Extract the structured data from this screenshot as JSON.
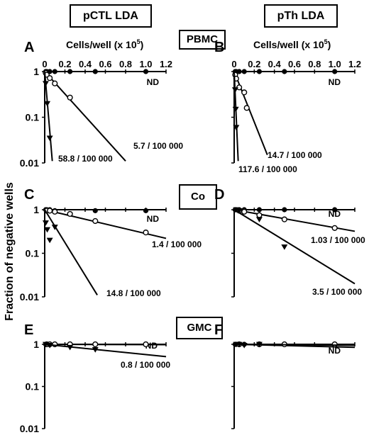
{
  "header": {
    "left_title": "pCTL LDA",
    "right_title": "pTh LDA",
    "y_axis_label": "Fraction of negative wells",
    "x_axis_label_base": "Cells/well (x 10",
    "x_axis_label_exp": "5",
    "x_axis_label_close": ")"
  },
  "row_labels": [
    "PBMC",
    "Co",
    "GMC"
  ],
  "chart_data": [
    {
      "panel": "A",
      "type": "scatter",
      "row_label": "PBMC",
      "show_x_ticks": true,
      "x_ticks": [
        "0",
        "0.2",
        "0.4",
        "0.6",
        "0.8",
        "1.0",
        "1.2"
      ],
      "y_ticks": [
        "1",
        "0.1",
        "0.01"
      ],
      "y_scale": "log",
      "ylim": [
        0.01,
        1
      ],
      "xlim": [
        0,
        1.2
      ],
      "series": [
        {
          "marker": "filled-circle",
          "points": [
            [
              0.01,
              1
            ],
            [
              0.02,
              1
            ],
            [
              0.05,
              1
            ],
            [
              0.1,
              1
            ],
            [
              0.25,
              1
            ],
            [
              0.5,
              1
            ],
            [
              1.0,
              1
            ]
          ],
          "fit": [
            [
              0,
              1
            ],
            [
              1.2,
              1
            ]
          ],
          "label": "ND"
        },
        {
          "marker": "open-circle",
          "points": [
            [
              0.01,
              0.93
            ],
            [
              0.02,
              0.85
            ],
            [
              0.05,
              0.72
            ],
            [
              0.1,
              0.55
            ],
            [
              0.25,
              0.27
            ]
          ],
          "fit": [
            [
              0,
              1
            ],
            [
              0.8,
              0.011
            ]
          ],
          "label": "5.7 / 100 000"
        },
        {
          "marker": "filled-triangle",
          "points": [
            [
              0.01,
              0.55
            ],
            [
              0.025,
              0.2
            ],
            [
              0.05,
              0.035
            ]
          ],
          "fit": [
            [
              0,
              1
            ],
            [
              0.075,
              0.011
            ]
          ],
          "label": "58.8 / 100 000"
        }
      ]
    },
    {
      "panel": "B",
      "type": "scatter",
      "show_x_ticks": true,
      "x_ticks": [
        "0",
        "0.2",
        "0.4",
        "0.6",
        "0.8",
        "1.0",
        "1.2"
      ],
      "y_ticks": [
        "1",
        "0.1",
        "0.01"
      ],
      "y_scale": "log",
      "ylim": [
        0.01,
        1
      ],
      "xlim": [
        0,
        1.2
      ],
      "series": [
        {
          "marker": "filled-circle",
          "points": [
            [
              0.01,
              1
            ],
            [
              0.02,
              1
            ],
            [
              0.05,
              1
            ],
            [
              0.1,
              1
            ],
            [
              0.25,
              1
            ],
            [
              0.5,
              1
            ],
            [
              1.0,
              1
            ]
          ],
          "fit": [
            [
              0,
              1
            ],
            [
              1.2,
              1
            ]
          ],
          "label": "ND"
        },
        {
          "marker": "open-circle",
          "points": [
            [
              0.01,
              0.85
            ],
            [
              0.02,
              0.7
            ],
            [
              0.05,
              0.45
            ],
            [
              0.1,
              0.35
            ],
            [
              0.125,
              0.16
            ]
          ],
          "fit": [
            [
              0,
              1
            ],
            [
              0.33,
              0.015
            ]
          ],
          "label": "14.7 / 100 000"
        },
        {
          "marker": "filled-triangle",
          "points": [
            [
              0.01,
              0.4
            ],
            [
              0.015,
              0.15
            ],
            [
              0.02,
              0.06
            ]
          ],
          "fit": [
            [
              0,
              1
            ],
            [
              0.04,
              0.011
            ]
          ],
          "label": "117.6 / 100 000"
        }
      ]
    },
    {
      "panel": "C",
      "type": "scatter",
      "row_label": "Co",
      "show_x_ticks": false,
      "y_ticks": [
        "1",
        "0.1",
        "0.01"
      ],
      "y_scale": "log",
      "ylim": [
        0.01,
        1
      ],
      "xlim": [
        0,
        1.2
      ],
      "series": [
        {
          "marker": "filled-circle",
          "points": [
            [
              0.01,
              1
            ],
            [
              0.02,
              1
            ],
            [
              0.05,
              1
            ],
            [
              0.1,
              0.95
            ],
            [
              0.5,
              0.95
            ],
            [
              1.0,
              0.95
            ]
          ],
          "fit": [
            [
              0,
              1
            ],
            [
              1.2,
              1
            ]
          ],
          "label": "ND"
        },
        {
          "marker": "open-circle",
          "points": [
            [
              0.02,
              0.95
            ],
            [
              0.05,
              0.95
            ],
            [
              0.1,
              0.9
            ],
            [
              0.25,
              0.8
            ],
            [
              0.5,
              0.55
            ],
            [
              1.0,
              0.3
            ]
          ],
          "fit": [
            [
              0,
              1
            ],
            [
              1.2,
              0.22
            ]
          ],
          "label": "1.4 / 100 000"
        },
        {
          "marker": "filled-triangle",
          "points": [
            [
              0.01,
              0.5
            ],
            [
              0.025,
              0.35
            ],
            [
              0.05,
              0.2
            ],
            [
              0.1,
              0.4
            ]
          ],
          "fit": [
            [
              0,
              1
            ],
            [
              0.52,
              0.011
            ]
          ],
          "label": "14.8 / 100 000"
        }
      ]
    },
    {
      "panel": "D",
      "type": "scatter",
      "show_x_ticks": false,
      "y_ticks": [
        "1",
        "0.1",
        "0.01"
      ],
      "y_scale": "log",
      "ylim": [
        0.01,
        1
      ],
      "xlim": [
        0,
        1.2
      ],
      "series": [
        {
          "marker": "filled-circle",
          "points": [
            [
              0.01,
              1
            ],
            [
              0.02,
              1
            ],
            [
              0.05,
              1
            ],
            [
              0.1,
              1
            ],
            [
              0.25,
              1
            ],
            [
              0.5,
              1
            ],
            [
              1.0,
              1
            ]
          ],
          "fit": [
            [
              0,
              1
            ],
            [
              1.2,
              1
            ]
          ],
          "label": "ND"
        },
        {
          "marker": "open-circle",
          "points": [
            [
              0.05,
              0.95
            ],
            [
              0.1,
              0.9
            ],
            [
              0.25,
              0.75
            ],
            [
              0.5,
              0.6
            ],
            [
              1.0,
              0.38
            ]
          ],
          "fit": [
            [
              0,
              1
            ],
            [
              1.2,
              0.32
            ]
          ],
          "label": "1.03 / 100 000"
        },
        {
          "marker": "filled-triangle",
          "points": [
            [
              0.02,
              1
            ],
            [
              0.05,
              0.95
            ],
            [
              0.25,
              0.6
            ],
            [
              0.5,
              0.14
            ]
          ],
          "fit": [
            [
              0,
              1
            ],
            [
              1.2,
              0.02
            ]
          ],
          "label": "3.5 / 100 000"
        }
      ]
    },
    {
      "panel": "E",
      "type": "scatter",
      "row_label": "GMC",
      "show_x_ticks": false,
      "y_ticks": [
        "1",
        "0.1",
        "0.01"
      ],
      "y_scale": "log",
      "ylim": [
        0.01,
        1
      ],
      "xlim": [
        0,
        1.2
      ],
      "series": [
        {
          "marker": "filled-circle",
          "points": [
            [
              0.01,
              1
            ],
            [
              0.02,
              1
            ],
            [
              0.05,
              1
            ],
            [
              0.1,
              1
            ],
            [
              0.25,
              1
            ],
            [
              0.5,
              1
            ],
            [
              1.0,
              1
            ]
          ],
          "fit": [
            [
              0,
              1
            ],
            [
              1.2,
              1
            ]
          ],
          "label": "ND"
        },
        {
          "marker": "open-circle",
          "points": [
            [
              0.02,
              1
            ],
            [
              0.05,
              1
            ],
            [
              0.1,
              1
            ],
            [
              0.25,
              1
            ],
            [
              0.5,
              1
            ],
            [
              1.0,
              1
            ]
          ],
          "fit": [
            [
              0,
              1
            ],
            [
              1.2,
              0.98
            ]
          ],
          "label": ""
        },
        {
          "marker": "filled-triangle",
          "points": [
            [
              0.01,
              1
            ],
            [
              0.05,
              0.95
            ],
            [
              0.25,
              0.85
            ],
            [
              0.5,
              0.75
            ]
          ],
          "fit": [
            [
              0,
              1
            ],
            [
              1.2,
              0.51
            ]
          ],
          "label": "0.8 / 100 000"
        }
      ]
    },
    {
      "panel": "F",
      "type": "scatter",
      "show_x_ticks": false,
      "y_ticks": [
        "1",
        "0.1",
        "0.01"
      ],
      "y_scale": "log",
      "ylim": [
        0.01,
        1
      ],
      "xlim": [
        0,
        1.2
      ],
      "series": [
        {
          "marker": "filled-circle",
          "points": [
            [
              0.01,
              1
            ],
            [
              0.02,
              1
            ],
            [
              0.05,
              1
            ],
            [
              0.1,
              1
            ],
            [
              0.25,
              1
            ],
            [
              0.5,
              1
            ],
            [
              1.0,
              1
            ]
          ],
          "fit": [
            [
              0,
              1
            ],
            [
              1.2,
              1
            ]
          ],
          "label": ""
        },
        {
          "marker": "open-circle",
          "points": [
            [
              0.05,
              1
            ],
            [
              0.25,
              1
            ],
            [
              0.5,
              1
            ],
            [
              1.0,
              1
            ]
          ],
          "fit": [
            [
              0,
              1
            ],
            [
              1.2,
              0.85
            ]
          ],
          "label": "ND"
        },
        {
          "marker": "filled-triangle",
          "points": [
            [
              0.02,
              1
            ],
            [
              0.05,
              1
            ],
            [
              0.1,
              0.95
            ],
            [
              0.25,
              1
            ]
          ],
          "fit": [
            [
              0,
              1
            ],
            [
              1.2,
              0.95
            ]
          ],
          "label": ""
        }
      ]
    }
  ]
}
